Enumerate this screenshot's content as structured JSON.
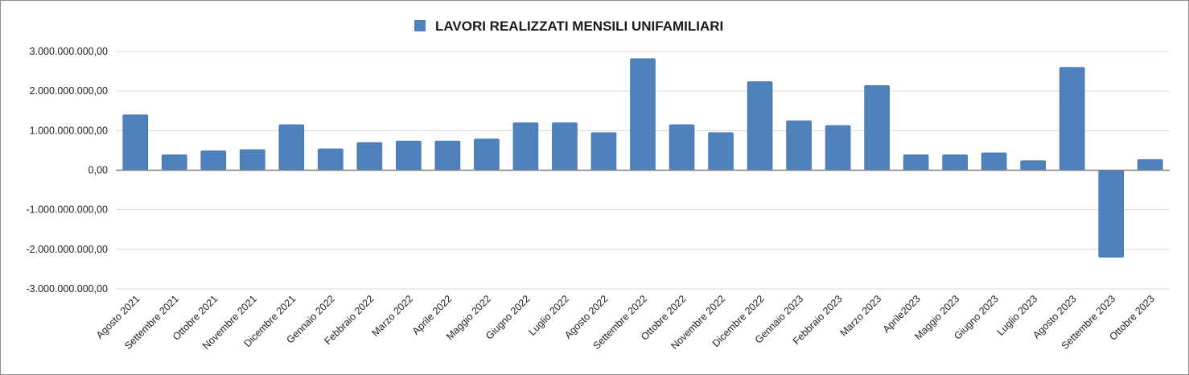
{
  "chart_data": {
    "type": "bar",
    "title": "",
    "xlabel": "",
    "ylabel": "",
    "series": [
      {
        "name": "LAVORI REALIZZATI MENSILI UNIFAMILIARI",
        "color": "#4f81bd",
        "values": [
          1400000000,
          390000000,
          490000000,
          520000000,
          1150000000,
          540000000,
          700000000,
          740000000,
          740000000,
          790000000,
          1200000000,
          1200000000,
          950000000,
          2820000000,
          1150000000,
          950000000,
          2240000000,
          1250000000,
          1130000000,
          2140000000,
          390000000,
          390000000,
          440000000,
          240000000,
          2600000000,
          -2200000000,
          270000000
        ]
      }
    ],
    "categories": [
      "Agosto 2021",
      "Settembre 2021",
      "Ottobre 2021",
      "Novembre 2021",
      "Dicembre 2021",
      "Gennaio 2022",
      "Febbraio 2022",
      "Marzo 2022",
      "Aprile 2022",
      "Maggio 2022",
      "Giugno 2022",
      "Luglio 2022",
      "Agosto 2022",
      "Settembre 2022",
      "Ottobre 2022",
      "Novembre 2022",
      "Dicembre 2022",
      "Gennaio 2023",
      "Febbraio 2023",
      "Marzo 2023",
      "Aprile2023",
      "Maggio 2023",
      "Giugno 2023",
      "Luglio 2023",
      "Agosto 2023",
      "Settembre 2023",
      "Ottobre 2023"
    ],
    "ylim": [
      -3000000000,
      3000000000
    ],
    "yticks": [
      3000000000,
      2000000000,
      1000000000,
      0,
      -1000000000,
      -2000000000,
      -3000000000
    ],
    "ytick_labels": [
      "3.000.000.000,00",
      "2.000.000.000,00",
      "1.000.000.000,00",
      "0,00",
      "-1.000.000.000,00",
      "-2.000.000.000,00",
      "-3.000.000.000,00"
    ],
    "grid": true,
    "legend_position": "top-center"
  }
}
